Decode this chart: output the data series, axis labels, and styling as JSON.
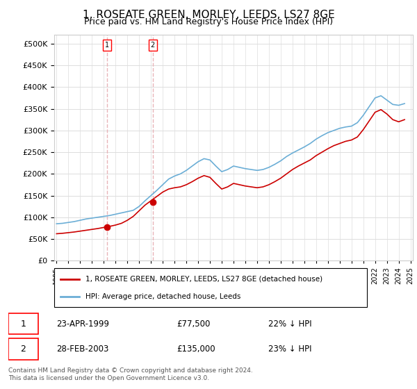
{
  "title": "1, ROSEATE GREEN, MORLEY, LEEDS, LS27 8GE",
  "subtitle": "Price paid vs. HM Land Registry's House Price Index (HPI)",
  "title_fontsize": 11,
  "subtitle_fontsize": 9,
  "legend_line1": "1, ROSEATE GREEN, MORLEY, LEEDS, LS27 8GE (detached house)",
  "legend_line2": "HPI: Average price, detached house, Leeds",
  "footer": "Contains HM Land Registry data © Crown copyright and database right 2024.\nThis data is licensed under the Open Government Licence v3.0.",
  "sale1_label": "1",
  "sale1_date_label": "23-APR-1999",
  "sale1_price_label": "£77,500",
  "sale1_hpi_label": "22% ↓ HPI",
  "sale1_year": 1999.3,
  "sale1_price": 77500,
  "sale2_label": "2",
  "sale2_date_label": "28-FEB-2003",
  "sale2_price_label": "£135,000",
  "sale2_hpi_label": "23% ↓ HPI",
  "sale2_year": 2003.15,
  "sale2_price": 135000,
  "hpi_color": "#6baed6",
  "sale_color": "#cc0000",
  "marker_color": "#cc0000",
  "vline_color": "#e8b4b8",
  "background_color": "#ffffff",
  "grid_color": "#dddddd",
  "ylim": [
    0,
    520000
  ],
  "yticks": [
    0,
    50000,
    100000,
    150000,
    200000,
    250000,
    300000,
    350000,
    400000,
    450000,
    500000
  ],
  "hpi_data": {
    "years": [
      1995.0,
      1995.5,
      1996.0,
      1996.5,
      1997.0,
      1997.5,
      1998.0,
      1998.5,
      1999.0,
      1999.5,
      2000.0,
      2000.5,
      2001.0,
      2001.5,
      2002.0,
      2002.5,
      2003.0,
      2003.5,
      2004.0,
      2004.5,
      2005.0,
      2005.5,
      2006.0,
      2006.5,
      2007.0,
      2007.5,
      2008.0,
      2008.5,
      2009.0,
      2009.5,
      2010.0,
      2010.5,
      2011.0,
      2011.5,
      2012.0,
      2012.5,
      2013.0,
      2013.5,
      2014.0,
      2014.5,
      2015.0,
      2015.5,
      2016.0,
      2016.5,
      2017.0,
      2017.5,
      2018.0,
      2018.5,
      2019.0,
      2019.5,
      2020.0,
      2020.5,
      2021.0,
      2021.5,
      2022.0,
      2022.5,
      2023.0,
      2023.5,
      2024.0,
      2024.5
    ],
    "values": [
      85000,
      86000,
      88000,
      90000,
      93000,
      96000,
      98000,
      100000,
      102000,
      104000,
      107000,
      110000,
      113000,
      116000,
      125000,
      138000,
      150000,
      162000,
      175000,
      188000,
      195000,
      200000,
      208000,
      218000,
      228000,
      235000,
      232000,
      218000,
      205000,
      210000,
      218000,
      215000,
      212000,
      210000,
      208000,
      210000,
      215000,
      222000,
      230000,
      240000,
      248000,
      255000,
      262000,
      270000,
      280000,
      288000,
      295000,
      300000,
      305000,
      308000,
      310000,
      318000,
      335000,
      355000,
      375000,
      380000,
      370000,
      360000,
      358000,
      362000
    ]
  },
  "sale_data": {
    "years": [
      1995.0,
      1995.5,
      1996.0,
      1996.5,
      1997.0,
      1997.5,
      1998.0,
      1998.5,
      1999.0,
      1999.5,
      2000.0,
      2000.5,
      2001.0,
      2001.5,
      2002.0,
      2002.5,
      2003.0,
      2003.5,
      2004.0,
      2004.5,
      2005.0,
      2005.5,
      2006.0,
      2006.5,
      2007.0,
      2007.5,
      2008.0,
      2008.5,
      2009.0,
      2009.5,
      2010.0,
      2010.5,
      2011.0,
      2011.5,
      2012.0,
      2012.5,
      2013.0,
      2013.5,
      2014.0,
      2014.5,
      2015.0,
      2015.5,
      2016.0,
      2016.5,
      2017.0,
      2017.5,
      2018.0,
      2018.5,
      2019.0,
      2019.5,
      2020.0,
      2020.5,
      2021.0,
      2021.5,
      2022.0,
      2022.5,
      2023.0,
      2023.5,
      2024.0,
      2024.5
    ],
    "values": [
      62000,
      63000,
      64500,
      66000,
      68000,
      70000,
      72000,
      74000,
      76500,
      79000,
      82000,
      86000,
      93000,
      102000,
      115000,
      128000,
      138000,
      148000,
      158000,
      165000,
      168000,
      170000,
      175000,
      182000,
      190000,
      196000,
      192000,
      178000,
      165000,
      170000,
      178000,
      175000,
      172000,
      170000,
      168000,
      170000,
      175000,
      182000,
      190000,
      200000,
      210000,
      218000,
      225000,
      232000,
      242000,
      250000,
      258000,
      265000,
      270000,
      275000,
      278000,
      285000,
      302000,
      322000,
      342000,
      348000,
      338000,
      325000,
      320000,
      325000
    ]
  }
}
